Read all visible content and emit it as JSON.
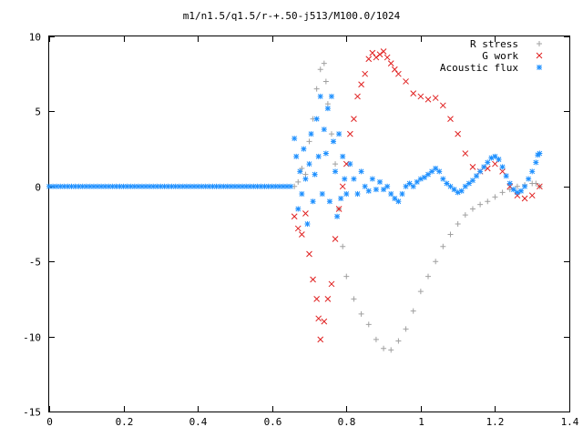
{
  "chart_data": {
    "type": "scatter",
    "title": "m1/n1.5/q1.5/r-+.50-j513/M100.0/1024",
    "xlabel": "",
    "ylabel": "",
    "xlim": [
      0,
      1.4
    ],
    "ylim": [
      -15,
      10
    ],
    "x_ticks": [
      0,
      0.2,
      0.4,
      0.6,
      0.8,
      1,
      1.2,
      1.4
    ],
    "x_tick_labels": [
      "0",
      "0.2",
      "0.4",
      "0.6",
      "0.8",
      "1",
      "1.2",
      "1.4"
    ],
    "y_ticks": [
      -15,
      -10,
      -5,
      0,
      5,
      10
    ],
    "y_tick_labels": [
      "-15",
      "-10",
      "-5",
      "0",
      "5",
      "10"
    ],
    "grid": false,
    "legend_position": "top-right",
    "series": [
      {
        "name": "R stress",
        "marker": "+",
        "color": "#a0a0a0",
        "points": [
          [
            0.66,
            0.0
          ],
          [
            0.67,
            0.3
          ],
          [
            0.68,
            1.2
          ],
          [
            0.69,
            0.8
          ],
          [
            0.7,
            3.0
          ],
          [
            0.71,
            4.5
          ],
          [
            0.72,
            6.5
          ],
          [
            0.73,
            7.8
          ],
          [
            0.74,
            8.2
          ],
          [
            0.745,
            7.0
          ],
          [
            0.75,
            5.5
          ],
          [
            0.76,
            3.5
          ],
          [
            0.77,
            1.5
          ],
          [
            0.78,
            -1.5
          ],
          [
            0.79,
            -4.0
          ],
          [
            0.8,
            -6.0
          ],
          [
            0.82,
            -7.5
          ],
          [
            0.84,
            -8.5
          ],
          [
            0.86,
            -9.2
          ],
          [
            0.88,
            -10.2
          ],
          [
            0.9,
            -10.8
          ],
          [
            0.92,
            -10.9
          ],
          [
            0.94,
            -10.3
          ],
          [
            0.96,
            -9.5
          ],
          [
            0.98,
            -8.3
          ],
          [
            1.0,
            -7.0
          ],
          [
            1.02,
            -6.0
          ],
          [
            1.04,
            -5.0
          ],
          [
            1.06,
            -4.0
          ],
          [
            1.08,
            -3.2
          ],
          [
            1.1,
            -2.5
          ],
          [
            1.12,
            -1.9
          ],
          [
            1.14,
            -1.5
          ],
          [
            1.16,
            -1.2
          ],
          [
            1.18,
            -1.0
          ],
          [
            1.2,
            -0.7
          ],
          [
            1.22,
            -0.4
          ],
          [
            1.24,
            -0.2
          ],
          [
            1.26,
            0.0
          ],
          [
            1.28,
            0.1
          ],
          [
            1.3,
            0.2
          ],
          [
            1.31,
            0.2
          ],
          [
            1.32,
            0.0
          ]
        ]
      },
      {
        "name": "G work",
        "marker": "x",
        "color": "#e02020",
        "points": [
          [
            0.66,
            -2.0
          ],
          [
            0.67,
            -2.8
          ],
          [
            0.68,
            -3.2
          ],
          [
            0.69,
            -1.8
          ],
          [
            0.7,
            -4.5
          ],
          [
            0.71,
            -6.2
          ],
          [
            0.72,
            -7.5
          ],
          [
            0.725,
            -8.8
          ],
          [
            0.73,
            -10.2
          ],
          [
            0.74,
            -9.0
          ],
          [
            0.75,
            -7.5
          ],
          [
            0.76,
            -6.5
          ],
          [
            0.77,
            -3.5
          ],
          [
            0.78,
            -1.5
          ],
          [
            0.79,
            0.0
          ],
          [
            0.8,
            1.5
          ],
          [
            0.81,
            3.5
          ],
          [
            0.82,
            4.5
          ],
          [
            0.83,
            6.0
          ],
          [
            0.84,
            6.8
          ],
          [
            0.85,
            7.5
          ],
          [
            0.86,
            8.5
          ],
          [
            0.87,
            8.9
          ],
          [
            0.88,
            8.6
          ],
          [
            0.89,
            8.8
          ],
          [
            0.9,
            9.0
          ],
          [
            0.91,
            8.6
          ],
          [
            0.92,
            8.2
          ],
          [
            0.93,
            7.8
          ],
          [
            0.94,
            7.5
          ],
          [
            0.96,
            7.0
          ],
          [
            0.98,
            6.2
          ],
          [
            1.0,
            6.0
          ],
          [
            1.02,
            5.8
          ],
          [
            1.04,
            5.9
          ],
          [
            1.06,
            5.4
          ],
          [
            1.08,
            4.5
          ],
          [
            1.1,
            3.5
          ],
          [
            1.12,
            2.2
          ],
          [
            1.14,
            1.3
          ],
          [
            1.16,
            1.0
          ],
          [
            1.18,
            1.2
          ],
          [
            1.2,
            1.5
          ],
          [
            1.22,
            1.0
          ],
          [
            1.24,
            0.0
          ],
          [
            1.26,
            -0.6
          ],
          [
            1.28,
            -0.8
          ],
          [
            1.3,
            -0.6
          ],
          [
            1.32,
            0.0
          ]
        ]
      },
      {
        "name": "Acoustic flux",
        "marker": "*",
        "color": "#1e90ff",
        "points": [
          [
            0.0,
            0.0
          ],
          [
            0.01,
            0.0
          ],
          [
            0.02,
            0.0
          ],
          [
            0.03,
            0.0
          ],
          [
            0.04,
            0.0
          ],
          [
            0.05,
            0.0
          ],
          [
            0.06,
            0.0
          ],
          [
            0.07,
            0.0
          ],
          [
            0.08,
            0.0
          ],
          [
            0.09,
            0.0
          ],
          [
            0.1,
            0.0
          ],
          [
            0.11,
            0.0
          ],
          [
            0.12,
            0.0
          ],
          [
            0.13,
            0.0
          ],
          [
            0.14,
            0.0
          ],
          [
            0.15,
            0.0
          ],
          [
            0.16,
            0.0
          ],
          [
            0.17,
            0.0
          ],
          [
            0.18,
            0.0
          ],
          [
            0.19,
            0.0
          ],
          [
            0.2,
            0.0
          ],
          [
            0.21,
            0.0
          ],
          [
            0.22,
            0.0
          ],
          [
            0.23,
            0.0
          ],
          [
            0.24,
            0.0
          ],
          [
            0.25,
            0.0
          ],
          [
            0.26,
            0.0
          ],
          [
            0.27,
            0.0
          ],
          [
            0.28,
            0.0
          ],
          [
            0.29,
            0.0
          ],
          [
            0.3,
            0.0
          ],
          [
            0.31,
            0.0
          ],
          [
            0.32,
            0.0
          ],
          [
            0.33,
            0.0
          ],
          [
            0.34,
            0.0
          ],
          [
            0.35,
            0.0
          ],
          [
            0.36,
            0.0
          ],
          [
            0.37,
            0.0
          ],
          [
            0.38,
            0.0
          ],
          [
            0.39,
            0.0
          ],
          [
            0.4,
            0.0
          ],
          [
            0.41,
            0.0
          ],
          [
            0.42,
            0.0
          ],
          [
            0.43,
            0.0
          ],
          [
            0.44,
            0.0
          ],
          [
            0.45,
            0.0
          ],
          [
            0.46,
            0.0
          ],
          [
            0.47,
            0.0
          ],
          [
            0.48,
            0.0
          ],
          [
            0.49,
            0.0
          ],
          [
            0.5,
            0.0
          ],
          [
            0.51,
            0.0
          ],
          [
            0.52,
            0.0
          ],
          [
            0.53,
            0.0
          ],
          [
            0.54,
            0.0
          ],
          [
            0.55,
            0.0
          ],
          [
            0.56,
            0.0
          ],
          [
            0.57,
            0.0
          ],
          [
            0.58,
            0.0
          ],
          [
            0.59,
            0.0
          ],
          [
            0.6,
            0.0
          ],
          [
            0.61,
            0.0
          ],
          [
            0.62,
            0.0
          ],
          [
            0.63,
            0.0
          ],
          [
            0.64,
            0.0
          ],
          [
            0.65,
            0.0
          ],
          [
            0.66,
            3.2
          ],
          [
            0.665,
            2.0
          ],
          [
            0.67,
            -1.5
          ],
          [
            0.675,
            1.0
          ],
          [
            0.68,
            -0.5
          ],
          [
            0.685,
            2.5
          ],
          [
            0.69,
            0.5
          ],
          [
            0.695,
            -2.5
          ],
          [
            0.7,
            1.5
          ],
          [
            0.705,
            3.5
          ],
          [
            0.71,
            -1.0
          ],
          [
            0.715,
            0.8
          ],
          [
            0.72,
            4.5
          ],
          [
            0.725,
            2.0
          ],
          [
            0.73,
            6.0
          ],
          [
            0.735,
            -0.5
          ],
          [
            0.74,
            3.8
          ],
          [
            0.745,
            2.2
          ],
          [
            0.75,
            5.2
          ],
          [
            0.755,
            -1.0
          ],
          [
            0.76,
            6.0
          ],
          [
            0.765,
            3.0
          ],
          [
            0.77,
            1.0
          ],
          [
            0.775,
            -2.0
          ],
          [
            0.78,
            3.5
          ],
          [
            0.785,
            -0.8
          ],
          [
            0.79,
            2.0
          ],
          [
            0.795,
            0.5
          ],
          [
            0.8,
            -0.5
          ],
          [
            0.81,
            1.5
          ],
          [
            0.82,
            0.5
          ],
          [
            0.83,
            -0.5
          ],
          [
            0.84,
            1.0
          ],
          [
            0.85,
            0.0
          ],
          [
            0.86,
            -0.3
          ],
          [
            0.87,
            0.5
          ],
          [
            0.88,
            -0.2
          ],
          [
            0.89,
            0.3
          ],
          [
            0.9,
            -0.2
          ],
          [
            0.91,
            0.0
          ],
          [
            0.92,
            -0.5
          ],
          [
            0.93,
            -0.8
          ],
          [
            0.94,
            -1.0
          ],
          [
            0.95,
            -0.5
          ],
          [
            0.96,
            0.0
          ],
          [
            0.97,
            0.2
          ],
          [
            0.98,
            0.0
          ],
          [
            0.99,
            0.3
          ],
          [
            1.0,
            0.5
          ],
          [
            1.01,
            0.6
          ],
          [
            1.02,
            0.8
          ],
          [
            1.03,
            1.0
          ],
          [
            1.04,
            1.2
          ],
          [
            1.05,
            1.0
          ],
          [
            1.06,
            0.5
          ],
          [
            1.07,
            0.2
          ],
          [
            1.08,
            0.0
          ],
          [
            1.09,
            -0.2
          ],
          [
            1.1,
            -0.4
          ],
          [
            1.11,
            -0.3
          ],
          [
            1.12,
            0.0
          ],
          [
            1.13,
            0.2
          ],
          [
            1.14,
            0.4
          ],
          [
            1.15,
            0.7
          ],
          [
            1.16,
            1.0
          ],
          [
            1.17,
            1.3
          ],
          [
            1.18,
            1.6
          ],
          [
            1.19,
            1.9
          ],
          [
            1.2,
            2.0
          ],
          [
            1.21,
            1.8
          ],
          [
            1.22,
            1.3
          ],
          [
            1.23,
            0.7
          ],
          [
            1.24,
            0.2
          ],
          [
            1.25,
            -0.2
          ],
          [
            1.26,
            -0.4
          ],
          [
            1.27,
            -0.3
          ],
          [
            1.28,
            0.0
          ],
          [
            1.29,
            0.5
          ],
          [
            1.3,
            1.0
          ],
          [
            1.31,
            1.6
          ],
          [
            1.315,
            2.1
          ],
          [
            1.32,
            2.2
          ]
        ]
      }
    ]
  }
}
